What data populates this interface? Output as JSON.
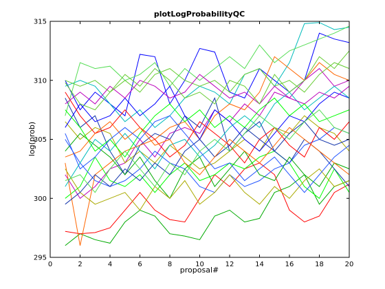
{
  "chart_data": {
    "type": "line",
    "title": "plotLogProbabilityQC",
    "xlabel": "proposal#",
    "ylabel": "log(prob)",
    "xlim": [
      0,
      20
    ],
    "ylim": [
      295,
      315
    ],
    "xticks": [
      0,
      2,
      4,
      6,
      8,
      10,
      12,
      14,
      16,
      18,
      20
    ],
    "yticks": [
      295,
      300,
      305,
      310,
      315
    ],
    "grid": false,
    "x": [
      1,
      2,
      3,
      4,
      5,
      6,
      7,
      8,
      9,
      10,
      11,
      12,
      13,
      14,
      15,
      16,
      17,
      18,
      19,
      20
    ],
    "colors": [
      "#0000ff",
      "#00aa00",
      "#ff0000",
      "#00bbbb",
      "#bb00bb",
      "#aaaa00",
      "#00ff00",
      "#1133aa",
      "#ff6600",
      "#66cc33",
      "#2255ff",
      "#55dd55"
    ],
    "series": [
      {
        "values": [
          310.0,
          307.5,
          309.0,
          308.0,
          307.0,
          312.2,
          312.0,
          308.0,
          310.0,
          312.7,
          312.4,
          309.0,
          308.5,
          311.0,
          310.0,
          309.0,
          310.0,
          314.0,
          313.5,
          313.2
        ]
      },
      {
        "values": [
          296.0,
          297.0,
          296.5,
          296.2,
          298.0,
          299.0,
          298.5,
          297.0,
          296.8,
          296.5,
          298.5,
          299.0,
          298.0,
          298.3,
          300.5,
          301.0,
          302.0,
          299.5,
          301.0,
          301.5
        ]
      },
      {
        "values": [
          297.2,
          297.0,
          297.1,
          297.5,
          299.0,
          300.5,
          299.0,
          298.2,
          298.0,
          300.0,
          302.0,
          301.0,
          302.5,
          303.0,
          302.0,
          299.0,
          298.0,
          298.5,
          300.5,
          301.2
        ]
      },
      {
        "values": [
          309.5,
          310.0,
          309.5,
          308.0,
          306.5,
          307.5,
          306.0,
          307.0,
          308.5,
          309.5,
          309.0,
          308.0,
          310.5,
          311.0,
          309.5,
          311.5,
          314.8,
          314.9,
          314.3,
          314.5
        ]
      },
      {
        "values": [
          302.0,
          300.0,
          301.0,
          302.5,
          303.0,
          305.0,
          303.5,
          305.5,
          306.0,
          305.5,
          307.5,
          306.5,
          308.0,
          307.0,
          309.0,
          308.5,
          310.0,
          311.0,
          309.5,
          310.0
        ]
      },
      {
        "values": [
          306.5,
          305.0,
          306.0,
          305.5,
          303.0,
          304.0,
          303.0,
          304.5,
          303.5,
          302.5,
          303.0,
          304.0,
          305.0,
          304.0,
          306.0,
          305.5,
          307.0,
          306.0,
          305.5,
          304.0
        ]
      },
      {
        "values": [
          300.0,
          301.0,
          303.5,
          301.5,
          301.0,
          302.0,
          300.5,
          302.0,
          303.0,
          301.5,
          302.0,
          303.0,
          302.5,
          303.5,
          304.0,
          303.0,
          301.0,
          300.0,
          302.5,
          300.5
        ]
      },
      {
        "values": [
          308.5,
          306.0,
          307.0,
          304.0,
          302.0,
          304.5,
          305.5,
          305.0,
          307.0,
          306.0,
          308.5,
          304.0,
          305.5,
          306.5,
          304.0,
          303.0,
          305.0,
          304.0,
          302.5,
          301.0
        ]
      },
      {
        "values": [
          303.0,
          296.0,
          302.0,
          303.0,
          304.0,
          304.5,
          305.0,
          306.0,
          306.5,
          305.0,
          307.0,
          308.0,
          307.5,
          309.0,
          312.0,
          311.0,
          310.0,
          311.5,
          310.5,
          310.0
        ]
      },
      {
        "values": [
          310.0,
          309.5,
          310.0,
          309.0,
          310.0,
          309.0,
          310.5,
          311.0,
          310.0,
          309.5,
          310.0,
          309.0,
          310.5,
          311.0,
          309.5,
          310.0,
          309.0,
          310.5,
          311.5,
          311.0
        ]
      },
      {
        "values": [
          305.0,
          303.0,
          301.5,
          301.0,
          301.5,
          302.5,
          304.0,
          303.0,
          302.5,
          301.0,
          300.5,
          302.0,
          301.0,
          301.5,
          302.5,
          303.0,
          304.5,
          305.0,
          306.0,
          305.5
        ]
      },
      {
        "values": [
          307.0,
          311.5,
          311.0,
          311.2,
          310.0,
          310.5,
          311.5,
          309.5,
          311.0,
          310.0,
          311.0,
          312.0,
          311.0,
          313.0,
          311.5,
          312.5,
          313.0,
          313.5,
          314.0,
          314.6
        ]
      },
      {
        "values": [
          306.0,
          308.0,
          306.5,
          307.0,
          308.5,
          307.0,
          308.0,
          309.5,
          307.0,
          305.0,
          307.5,
          306.5,
          305.0,
          304.0,
          305.5,
          307.0,
          306.5,
          308.0,
          309.0,
          308.5
        ]
      },
      {
        "values": [
          304.0,
          305.5,
          304.5,
          303.5,
          302.0,
          303.5,
          301.5,
          300.0,
          302.5,
          303.5,
          301.0,
          302.5,
          304.0,
          302.0,
          301.5,
          303.5,
          302.0,
          301.0,
          303.0,
          302.5
        ]
      },
      {
        "values": [
          309.0,
          307.0,
          305.5,
          306.0,
          307.5,
          306.0,
          305.0,
          303.5,
          304.5,
          306.5,
          305.5,
          304.5,
          303.0,
          305.0,
          306.0,
          304.5,
          303.5,
          306.0,
          305.0,
          306.5
        ]
      },
      {
        "values": [
          301.0,
          303.0,
          305.0,
          304.0,
          305.5,
          304.0,
          302.5,
          304.5,
          305.0,
          303.5,
          304.5,
          306.0,
          307.0,
          306.0,
          308.0,
          309.0,
          307.5,
          308.5,
          309.5,
          308.5
        ]
      },
      {
        "values": [
          308.0,
          309.0,
          308.0,
          309.5,
          308.5,
          310.0,
          309.5,
          308.5,
          309.0,
          310.5,
          309.5,
          308.5,
          309.0,
          308.0,
          309.5,
          308.5,
          308.0,
          309.0,
          308.5,
          309.5
        ]
      },
      {
        "values": [
          302.5,
          300.5,
          299.5,
          300.0,
          300.5,
          299.0,
          301.0,
          300.0,
          301.5,
          299.5,
          300.5,
          302.0,
          300.5,
          299.5,
          301.0,
          300.0,
          301.5,
          302.5,
          301.0,
          301.5
        ]
      },
      {
        "values": [
          307.5,
          306.0,
          304.0,
          305.0,
          303.5,
          305.5,
          307.0,
          308.0,
          306.5,
          307.5,
          306.0,
          307.0,
          306.0,
          307.5,
          308.5,
          307.0,
          308.0,
          306.5,
          307.0,
          307.5
        ]
      },
      {
        "values": [
          299.5,
          300.5,
          302.0,
          301.0,
          302.5,
          301.5,
          303.0,
          302.0,
          304.0,
          305.0,
          303.5,
          304.5,
          306.0,
          305.0,
          304.0,
          305.5,
          306.5,
          305.0,
          304.5,
          305.0
        ]
      },
      {
        "values": [
          303.5,
          304.0,
          305.5,
          306.5,
          305.0,
          306.0,
          304.5,
          305.0,
          303.0,
          302.0,
          303.5,
          305.0,
          304.0,
          303.0,
          304.5,
          306.0,
          305.0,
          304.0,
          303.0,
          302.0
        ]
      },
      {
        "values": [
          309.8,
          308.0,
          307.5,
          309.0,
          310.5,
          309.5,
          311.0,
          310.0,
          308.5,
          309.0,
          308.0,
          310.0,
          309.5,
          308.0,
          310.5,
          309.0,
          310.0,
          312.0,
          311.0,
          312.5
        ]
      },
      {
        "values": [
          305.5,
          302.5,
          303.5,
          305.0,
          306.0,
          305.0,
          306.5,
          307.0,
          305.5,
          304.0,
          302.5,
          303.0,
          301.5,
          302.5,
          303.5,
          302.0,
          300.5,
          302.0,
          303.5,
          304.5
        ]
      },
      {
        "values": [
          301.5,
          302.0,
          300.5,
          302.5,
          304.0,
          302.5,
          301.0,
          303.0,
          302.0,
          304.0,
          305.0,
          304.0,
          305.5,
          307.0,
          306.0,
          305.0,
          306.5,
          307.5,
          306.0,
          305.5
        ]
      }
    ]
  }
}
